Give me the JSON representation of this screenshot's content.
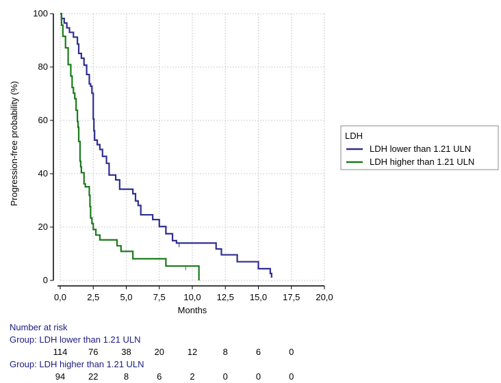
{
  "chart_data": {
    "type": "line",
    "step": true,
    "xlabel": "Months",
    "ylabel": "Progression-free probability (%)",
    "xlim": [
      0,
      20
    ],
    "ylim": [
      0,
      100
    ],
    "x_ticks": [
      "0,0",
      "2,5",
      "5,0",
      "7,5",
      "10,0",
      "12,5",
      "15,0",
      "17,5",
      "20,0"
    ],
    "y_ticks": [
      "0",
      "20",
      "40",
      "60",
      "80",
      "100"
    ],
    "grid": true,
    "legend_title": "LDH",
    "legend_position": "right",
    "series": [
      {
        "name": "LDH lower than 1.21 ULN",
        "color": "#2e2e8f",
        "points": [
          [
            0,
            100
          ],
          [
            0.1,
            98.2
          ],
          [
            0.3,
            96.5
          ],
          [
            0.5,
            94.7
          ],
          [
            0.7,
            93
          ],
          [
            1,
            91.2
          ],
          [
            1.3,
            88.6
          ],
          [
            1.4,
            85.1
          ],
          [
            1.6,
            83.3
          ],
          [
            1.8,
            80.7
          ],
          [
            2,
            77.2
          ],
          [
            2.2,
            73.7
          ],
          [
            2.3,
            72.8
          ],
          [
            2.4,
            70.2
          ],
          [
            2.5,
            60.5
          ],
          [
            2.55,
            56.1
          ],
          [
            2.6,
            52.6
          ],
          [
            2.8,
            50.9
          ],
          [
            3,
            49.1
          ],
          [
            3.2,
            46.5
          ],
          [
            3.5,
            43.9
          ],
          [
            3.7,
            39.5
          ],
          [
            4.2,
            37.7
          ],
          [
            4.5,
            34.2
          ],
          [
            5.5,
            32.5
          ],
          [
            5.7,
            29.8
          ],
          [
            5.9,
            28.1
          ],
          [
            6.1,
            24.6
          ],
          [
            7,
            22.8
          ],
          [
            7.5,
            20.2
          ],
          [
            8,
            17.5
          ],
          [
            8.5,
            14.9
          ],
          [
            8.8,
            14
          ],
          [
            11.8,
            11.8
          ],
          [
            12.2,
            9.6
          ],
          [
            13.4,
            7
          ],
          [
            15,
            4.4
          ],
          [
            15.9,
            2.6
          ],
          [
            16,
            1
          ]
        ],
        "censored": [
          [
            9,
            14
          ],
          [
            15.9,
            4.4
          ]
        ]
      },
      {
        "name": "LDH higher than 1.21 ULN",
        "color": "#1a7a1a",
        "points": [
          [
            0,
            100
          ],
          [
            0.1,
            95.7
          ],
          [
            0.2,
            91.5
          ],
          [
            0.4,
            87.2
          ],
          [
            0.6,
            80.9
          ],
          [
            0.8,
            76.6
          ],
          [
            0.9,
            72.3
          ],
          [
            1,
            70.2
          ],
          [
            1.1,
            68.1
          ],
          [
            1.2,
            63.8
          ],
          [
            1.3,
            59.6
          ],
          [
            1.35,
            57.4
          ],
          [
            1.4,
            52.1
          ],
          [
            1.5,
            44.7
          ],
          [
            1.55,
            42.6
          ],
          [
            1.6,
            40.4
          ],
          [
            1.8,
            36.2
          ],
          [
            1.9,
            35.1
          ],
          [
            2.2,
            31.9
          ],
          [
            2.25,
            27.7
          ],
          [
            2.3,
            23.4
          ],
          [
            2.4,
            21.3
          ],
          [
            2.5,
            19.1
          ],
          [
            2.7,
            17
          ],
          [
            3,
            15.2
          ],
          [
            4.3,
            13
          ],
          [
            4.6,
            10.9
          ],
          [
            5.5,
            8.1
          ],
          [
            8,
            5.4
          ],
          [
            10.5,
            0
          ]
        ],
        "censored": [
          [
            9.5,
            5.4
          ]
        ]
      }
    ]
  },
  "risk_table": {
    "title": "Number at risk",
    "groups": [
      {
        "label": "Group: LDH lower than 1.21 ULN",
        "values": [
          "114",
          "76",
          "38",
          "20",
          "12",
          "8",
          "6",
          "0"
        ]
      },
      {
        "label": "Group: LDH higher than 1.21 ULN",
        "values": [
          "94",
          "22",
          "8",
          "6",
          "2",
          "0",
          "0",
          "0"
        ]
      }
    ]
  }
}
